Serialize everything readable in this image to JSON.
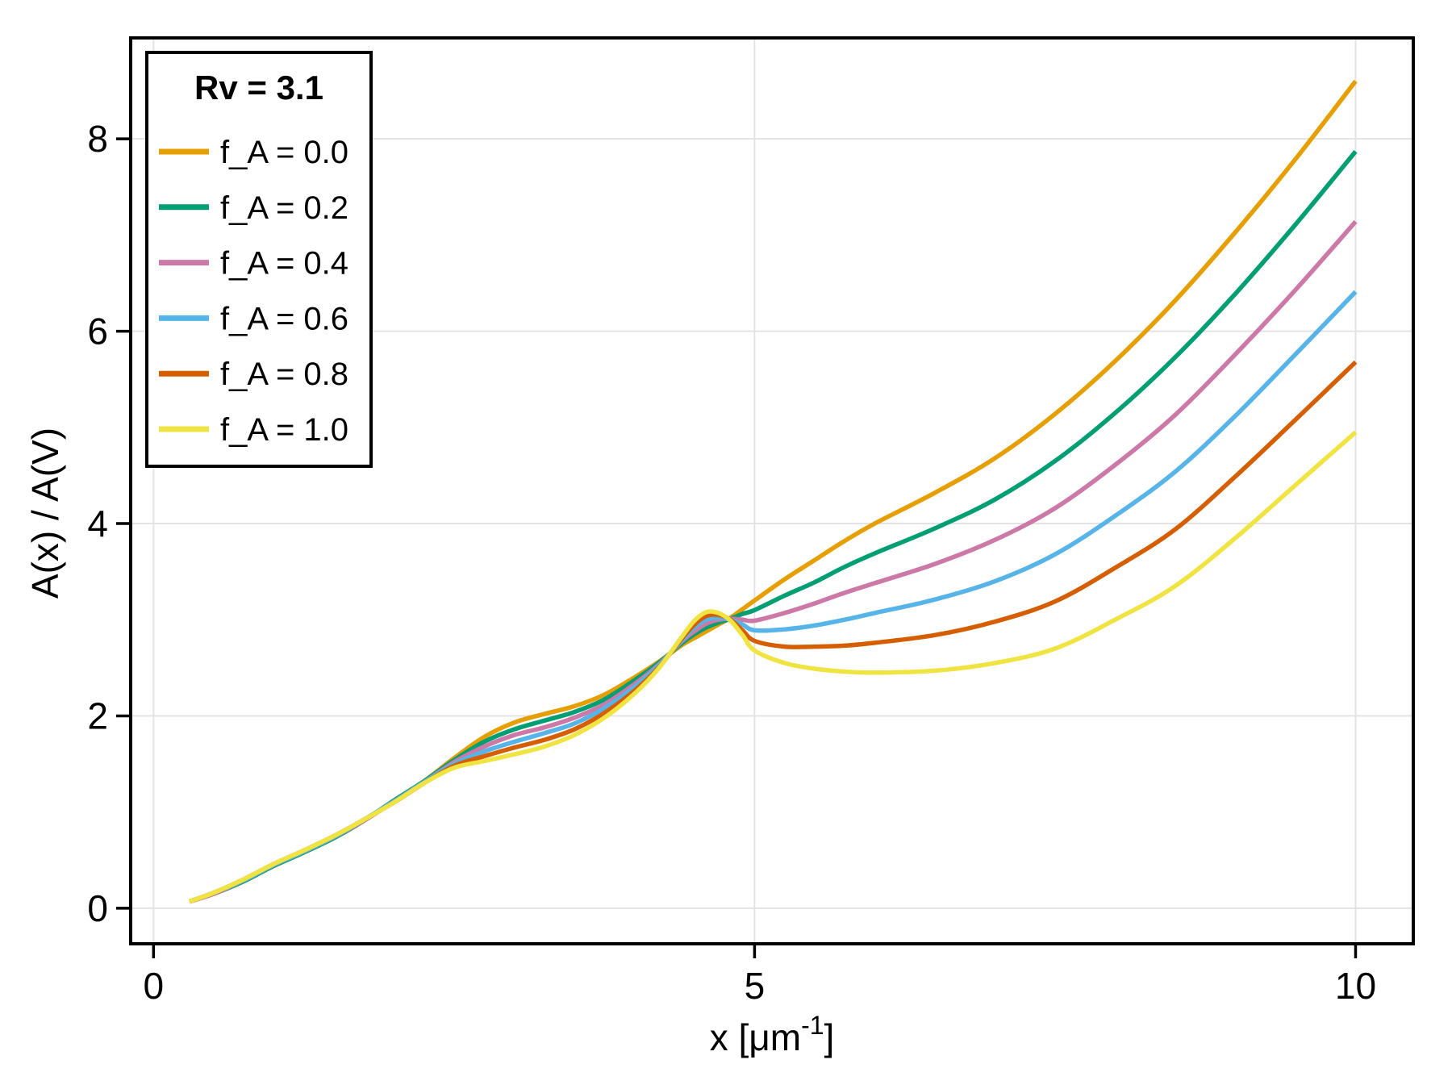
{
  "figure": {
    "background": "#ffffff",
    "legend_title": "Rv = 3.1",
    "frame_color": "#000000",
    "grid_color": "#e3e3e3"
  },
  "chart_data": {
    "type": "line",
    "title": "",
    "xlabel": "x [μm⁻¹]",
    "xlabel_parts": {
      "pre": "x [μm",
      "sup": "-1",
      "post": "]"
    },
    "ylabel": "A(x) / A(V)",
    "xlim": [
      -0.19,
      10.48
    ],
    "ylim": [
      -0.37,
      9.05
    ],
    "x_ticks": [
      0,
      5,
      10
    ],
    "y_ticks": [
      0,
      2,
      4,
      6,
      8
    ],
    "grid": true,
    "legend_position": "top-left",
    "x": [
      0.3,
      0.5,
      0.75,
      1.0,
      1.25,
      1.5,
      1.75,
      2.0,
      2.25,
      2.5,
      2.75,
      3.0,
      3.25,
      3.5,
      3.75,
      4.0,
      4.2,
      4.4,
      4.5,
      4.6,
      4.7,
      4.8,
      4.9,
      5.0,
      5.25,
      5.5,
      5.75,
      6.0,
      6.5,
      7.0,
      7.5,
      8.0,
      8.5,
      9.0,
      9.5,
      10.0
    ],
    "series": [
      {
        "name": "f_A = 0.0",
        "fA": 0.0,
        "color": "#E69F00",
        "values": [
          0.07,
          0.15,
          0.28,
          0.44,
          0.58,
          0.73,
          0.91,
          1.12,
          1.32,
          1.56,
          1.78,
          1.93,
          2.02,
          2.1,
          2.22,
          2.4,
          2.56,
          2.74,
          2.81,
          2.88,
          2.95,
          3.02,
          3.11,
          3.2,
          3.42,
          3.62,
          3.82,
          4.0,
          4.32,
          4.68,
          5.14,
          5.69,
          6.32,
          7.03,
          7.79,
          8.6
        ]
      },
      {
        "name": "f_A = 0.2",
        "fA": 0.2,
        "color": "#009E73",
        "values": [
          0.07,
          0.15,
          0.28,
          0.44,
          0.58,
          0.73,
          0.91,
          1.12,
          1.32,
          1.54,
          1.73,
          1.86,
          1.95,
          2.04,
          2.17,
          2.37,
          2.55,
          2.76,
          2.85,
          2.92,
          2.97,
          3.01,
          3.06,
          3.1,
          3.25,
          3.39,
          3.55,
          3.69,
          3.95,
          4.25,
          4.65,
          5.15,
          5.73,
          6.39,
          7.11,
          7.87
        ]
      },
      {
        "name": "f_A = 0.4",
        "fA": 0.4,
        "color": "#CC79A7",
        "values": [
          0.07,
          0.15,
          0.29,
          0.45,
          0.59,
          0.74,
          0.91,
          1.11,
          1.31,
          1.52,
          1.68,
          1.8,
          1.88,
          1.98,
          2.12,
          2.33,
          2.53,
          2.78,
          2.88,
          2.96,
          3.0,
          3.01,
          3.0,
          2.99,
          3.07,
          3.17,
          3.28,
          3.38,
          3.58,
          3.83,
          4.16,
          4.61,
          5.13,
          5.76,
          6.43,
          7.14
        ]
      },
      {
        "name": "f_A = 0.6",
        "fA": 0.6,
        "color": "#56B4E9",
        "values": [
          0.07,
          0.16,
          0.29,
          0.45,
          0.59,
          0.74,
          0.92,
          1.11,
          1.31,
          1.5,
          1.63,
          1.73,
          1.82,
          1.92,
          2.08,
          2.3,
          2.52,
          2.79,
          2.92,
          3.0,
          3.02,
          3.0,
          2.95,
          2.89,
          2.9,
          2.94,
          3.0,
          3.07,
          3.21,
          3.4,
          3.68,
          4.08,
          4.54,
          5.12,
          5.76,
          6.41
        ]
      },
      {
        "name": "f_A = 0.8",
        "fA": 0.8,
        "color": "#D55E00",
        "values": [
          0.07,
          0.16,
          0.3,
          0.46,
          0.6,
          0.75,
          0.92,
          1.1,
          1.3,
          1.48,
          1.58,
          1.67,
          1.75,
          1.86,
          2.03,
          2.26,
          2.5,
          2.81,
          2.95,
          3.04,
          3.05,
          3.0,
          2.89,
          2.78,
          2.72,
          2.72,
          2.73,
          2.76,
          2.84,
          2.98,
          3.19,
          3.54,
          3.94,
          4.49,
          5.08,
          5.68
        ]
      },
      {
        "name": "f_A = 1.0",
        "fA": 1.0,
        "color": "#F0E442",
        "values": [
          0.07,
          0.16,
          0.3,
          0.46,
          0.6,
          0.75,
          0.92,
          1.1,
          1.3,
          1.46,
          1.53,
          1.6,
          1.68,
          1.8,
          1.98,
          2.23,
          2.49,
          2.83,
          2.99,
          3.08,
          3.07,
          2.99,
          2.84,
          2.68,
          2.55,
          2.49,
          2.46,
          2.45,
          2.47,
          2.55,
          2.7,
          3.0,
          3.35,
          3.85,
          4.4,
          4.95
        ]
      }
    ]
  }
}
